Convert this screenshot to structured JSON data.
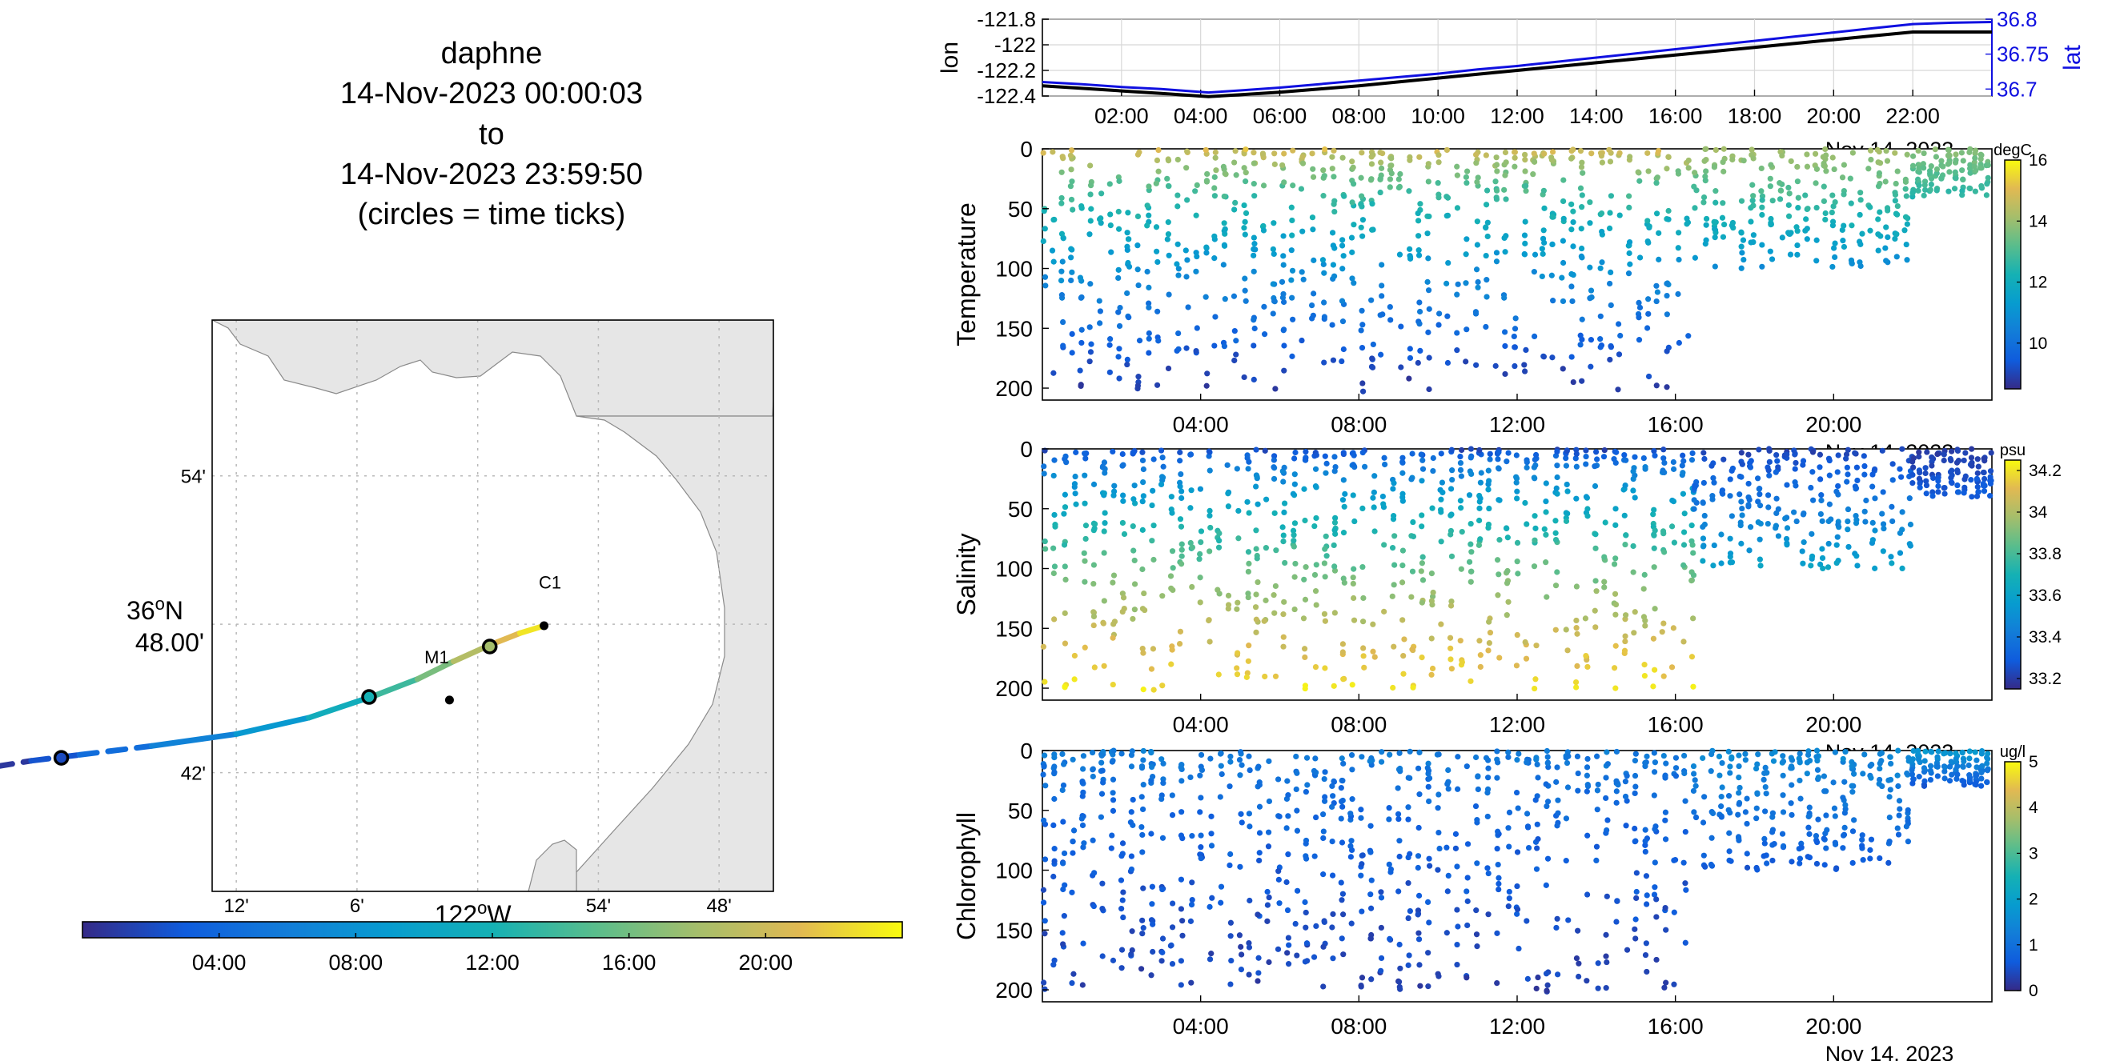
{
  "title": {
    "vehicle": "daphne",
    "start": "14-Nov-2023 00:00:03",
    "to": "to",
    "end": "14-Nov-2023 23:59:50",
    "note": "(circles = time ticks)"
  },
  "date_label": "Nov 14, 2023",
  "colors": {
    "lon_line": "#000000",
    "lat_line": "#1010e0",
    "lat_axis": "#1010e0",
    "land": "#e6e6e6",
    "coast": "#8a8a8a",
    "track_end_marker": "#000000"
  },
  "chart_data": [
    {
      "id": "map",
      "type": "scatter",
      "title": "",
      "lon_ticks": [
        "12'",
        "6'",
        "122°W",
        "54'",
        "48'"
      ],
      "lat_ticks": [
        "54'",
        "36°N 48.00'",
        "42'"
      ],
      "lat_tick_main": "36",
      "lat_tick_sup": "o",
      "lat_tick_suffix": "N",
      "lat_tick_sub": "48.00'",
      "lon_tick_main": "122",
      "lon_tick_sup": "o",
      "lon_tick_suffix": "W",
      "stations": [
        {
          "name": "C1",
          "lon": -121.94,
          "lat": 36.797
        },
        {
          "name": "M1",
          "lon": -122.03,
          "lat": 36.75
        }
      ],
      "track": {
        "lon": [
          -122.4,
          -122.37,
          -122.33,
          -122.27,
          -122.2,
          -122.14,
          -122.085,
          -122.05,
          -122.02,
          -121.99,
          -121.965,
          -121.945
        ],
        "lat": [
          36.704,
          36.708,
          36.712,
          36.718,
          36.726,
          36.737,
          36.752,
          36.763,
          36.775,
          36.786,
          36.794,
          36.799
        ],
        "hours": [
          0,
          1.5,
          3.5,
          5.5,
          7.5,
          10,
          12.5,
          15,
          17.5,
          20,
          22,
          24
        ]
      },
      "time_tick_circles": {
        "lon": [
          -122.345,
          -122.09,
          -121.99
        ],
        "lat": [
          36.71,
          36.751,
          36.785
        ]
      },
      "colorbar_ticks": [
        "04:00",
        "08:00",
        "12:00",
        "16:00",
        "20:00"
      ]
    },
    {
      "id": "lonlat",
      "type": "line",
      "ylabel": "lon",
      "ylabel_right": "lat",
      "xticks": [
        "02:00",
        "04:00",
        "06:00",
        "08:00",
        "10:00",
        "12:00",
        "14:00",
        "16:00",
        "18:00",
        "20:00",
        "22:00"
      ],
      "yticks_left": [
        -121.8,
        -122,
        -122.2,
        -122.4
      ],
      "yticks_right": [
        36.8,
        36.75,
        36.7
      ],
      "ylim_left": [
        -122.4,
        -121.8
      ],
      "ylim_right": [
        36.69,
        36.8
      ],
      "series": [
        {
          "name": "lon",
          "x": [
            0,
            1,
            2,
            3,
            4.2,
            5,
            6,
            7,
            8,
            9,
            10,
            11,
            12,
            13,
            14,
            15,
            16,
            17,
            18,
            19,
            20,
            21,
            22,
            23,
            24
          ],
          "y": [
            -122.32,
            -122.34,
            -122.36,
            -122.38,
            -122.405,
            -122.39,
            -122.37,
            -122.345,
            -122.32,
            -122.29,
            -122.26,
            -122.23,
            -122.2,
            -122.17,
            -122.14,
            -122.11,
            -122.08,
            -122.05,
            -122.02,
            -121.99,
            -121.96,
            -121.93,
            -121.9,
            -121.9,
            -121.9
          ]
        },
        {
          "name": "lat",
          "x": [
            0,
            1,
            2,
            3,
            4.2,
            5,
            6,
            7,
            8,
            9,
            10,
            11,
            12,
            13,
            14,
            15,
            16,
            17,
            18,
            19,
            20,
            21,
            22,
            23,
            24
          ],
          "y": [
            36.71,
            36.707,
            36.703,
            36.7,
            36.695,
            36.698,
            36.702,
            36.707,
            36.712,
            36.717,
            36.722,
            36.728,
            36.733,
            36.739,
            36.745,
            36.751,
            36.757,
            36.763,
            36.769,
            36.775,
            36.781,
            36.787,
            36.793,
            36.795,
            36.796
          ]
        }
      ]
    },
    {
      "id": "temperature",
      "type": "scatter",
      "ylabel": "Temperature",
      "units": "degC",
      "xticks": [
        "04:00",
        "08:00",
        "12:00",
        "16:00",
        "20:00"
      ],
      "yticks": [
        0,
        50,
        100,
        150,
        200
      ],
      "ylim": [
        0,
        210
      ],
      "clim": [
        8.5,
        16
      ],
      "cbar_ticks": [
        16,
        14,
        12,
        10
      ],
      "cbar_fraction": 0.87,
      "profile_depth_max": 200,
      "surface_value": 15.2,
      "deep_value": 8.8,
      "late_phase": {
        "start_h": 16.5,
        "max_depth": 100,
        "surface_value": 14.2,
        "deep_value": 10.8
      },
      "final_phase": {
        "start_h": 22,
        "max_depth": 40,
        "surface_value": 13.8,
        "deep_value": 12.5
      }
    },
    {
      "id": "salinity",
      "type": "scatter",
      "ylabel": "Salinity",
      "units": "psu",
      "xticks": [
        "04:00",
        "08:00",
        "12:00",
        "16:00",
        "20:00"
      ],
      "yticks": [
        0,
        50,
        100,
        150,
        200
      ],
      "ylim": [
        0,
        210
      ],
      "clim": [
        33.15,
        34.25
      ],
      "cbar_ticks": [
        34.2,
        34,
        33.8,
        33.6,
        33.4,
        33.2
      ],
      "cbar_fraction": 0.87,
      "profile_depth_max": 200,
      "surface_value": 33.2,
      "deep_value": 34.2,
      "late_phase": {
        "start_h": 16.5,
        "max_depth": 100,
        "surface_value": 33.22,
        "deep_value": 33.6
      },
      "final_phase": {
        "start_h": 22,
        "max_depth": 40,
        "surface_value": 33.2,
        "deep_value": 33.3
      }
    },
    {
      "id": "chlorophyll",
      "type": "scatter",
      "ylabel": "Chlorophyll",
      "units": "ug/l",
      "xticks": [
        "04:00",
        "08:00",
        "12:00",
        "16:00",
        "20:00"
      ],
      "yticks": [
        0,
        50,
        100,
        150,
        200
      ],
      "ylim": [
        0,
        210
      ],
      "clim": [
        0,
        5
      ],
      "cbar_ticks": [
        5,
        4,
        3,
        2,
        1,
        0
      ],
      "cbar_fraction": 0.92,
      "profile_depth_max": 200,
      "surface_value": 1.3,
      "deep_value": 0.3,
      "late_phase": {
        "start_h": 16.5,
        "max_depth": 100,
        "surface_value": 1.5,
        "deep_value": 0.6
      },
      "final_phase": {
        "start_h": 22,
        "max_depth": 30,
        "surface_value": 1.8,
        "deep_value": 0.6
      }
    }
  ]
}
